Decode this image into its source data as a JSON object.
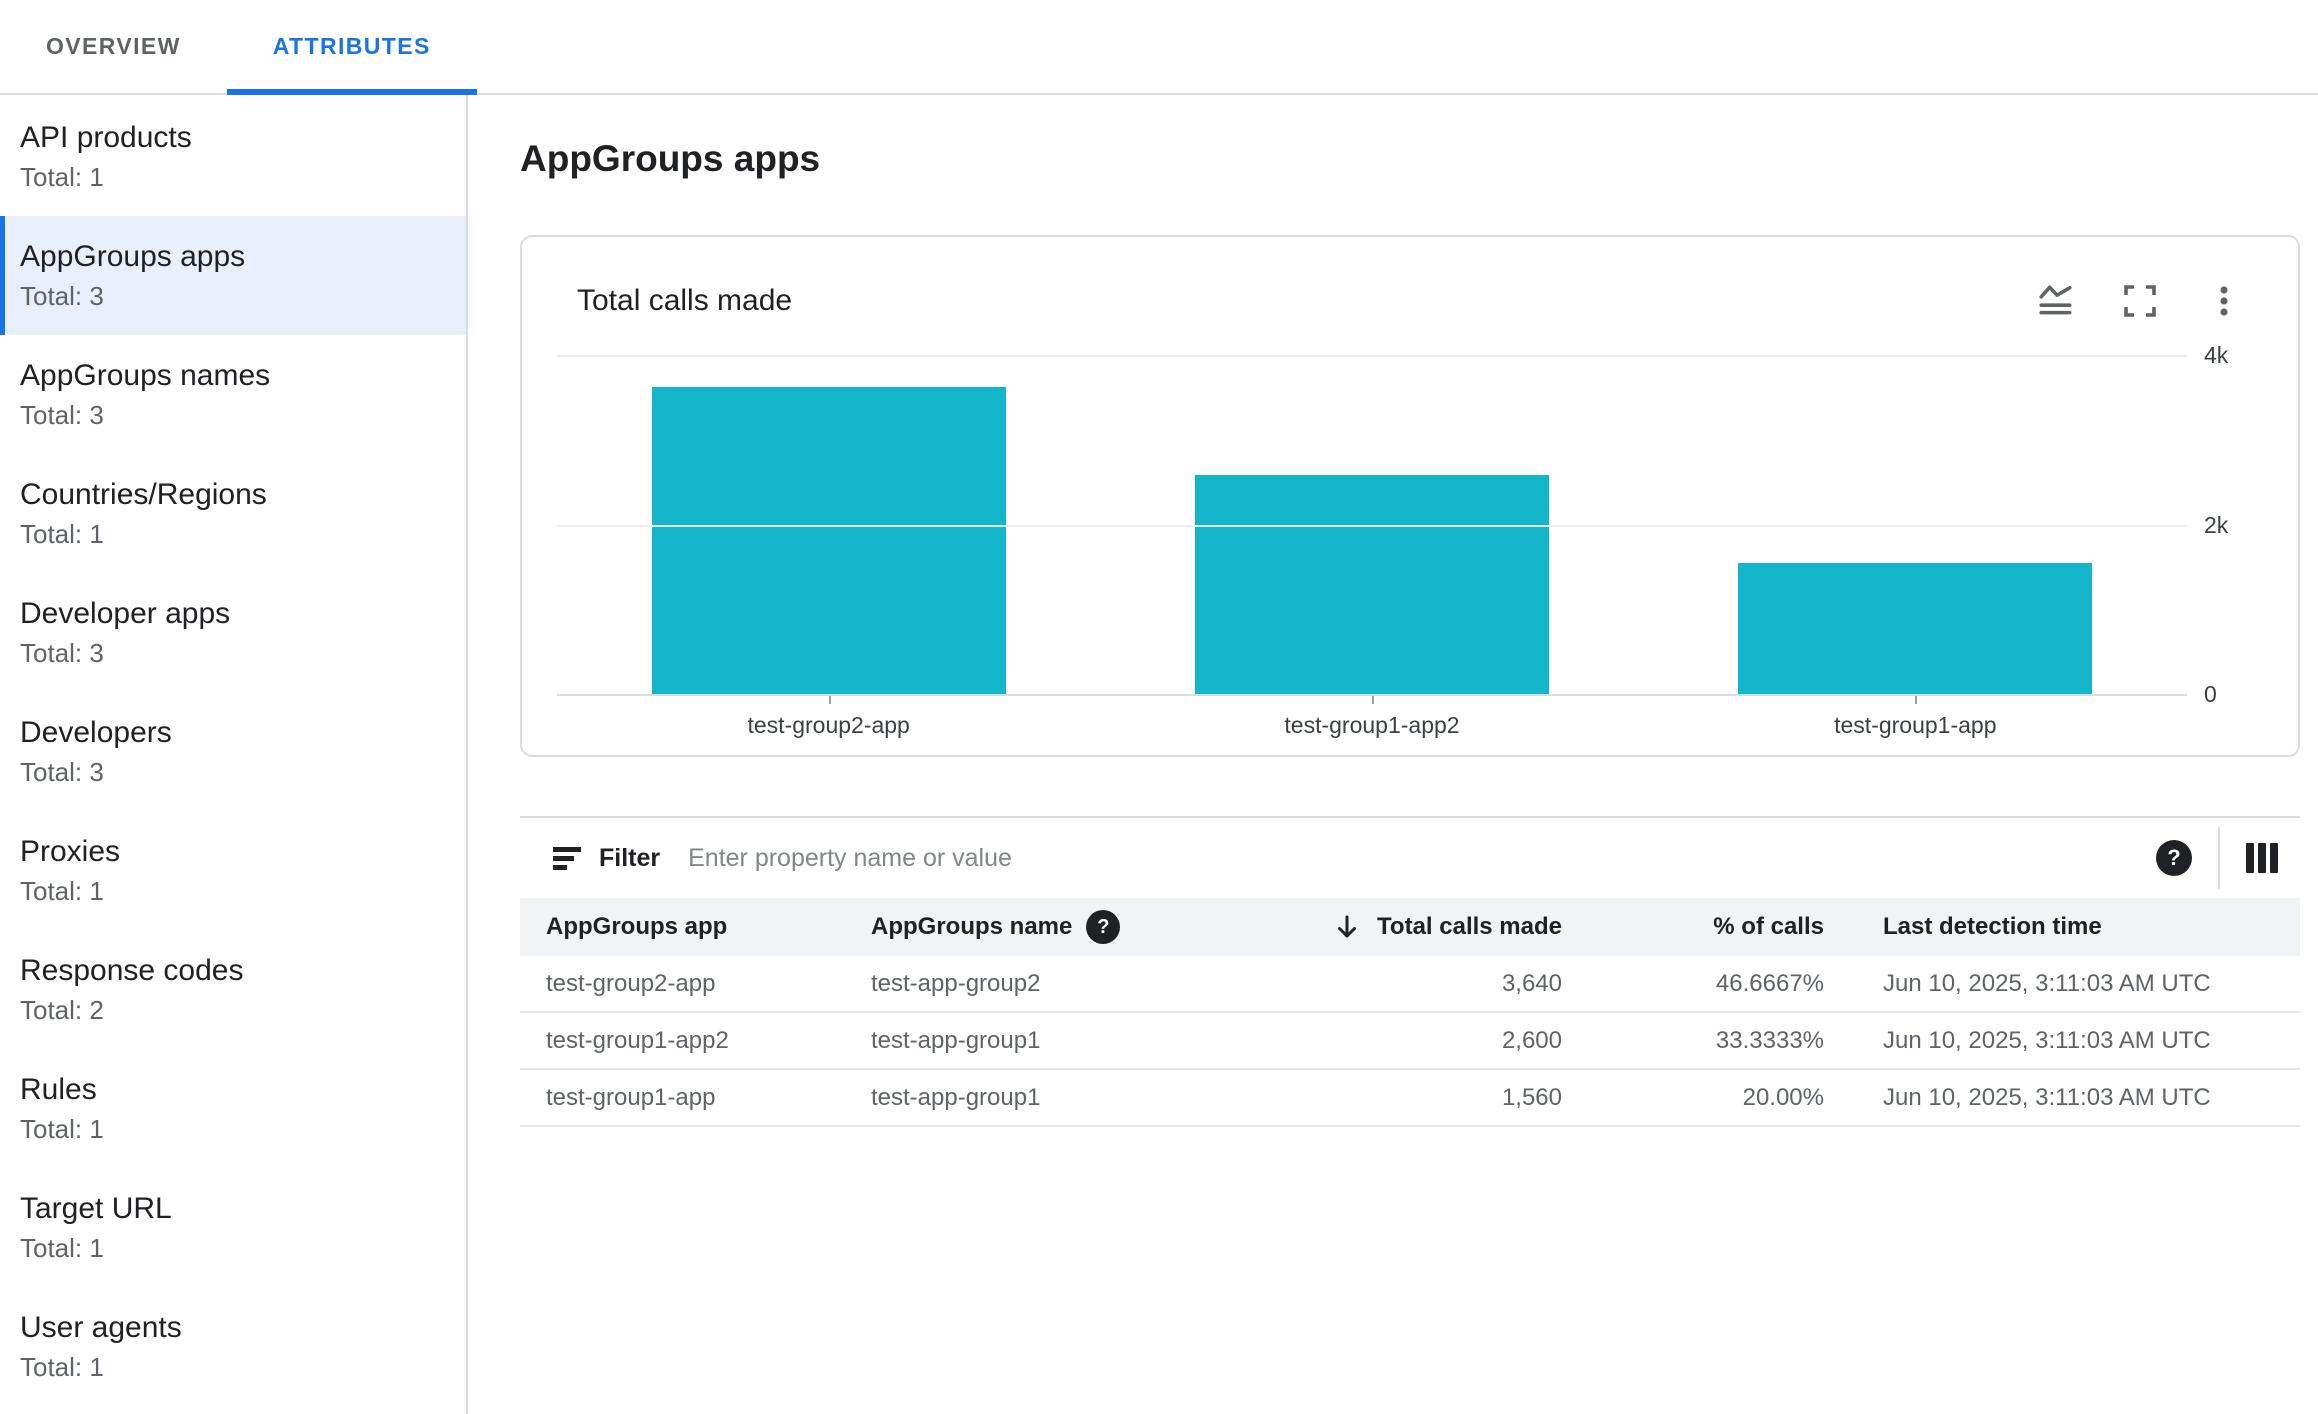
{
  "tabs": [
    {
      "label": "OVERVIEW",
      "active": false
    },
    {
      "label": "ATTRIBUTES",
      "active": true
    }
  ],
  "sidebar": {
    "items": [
      {
        "label": "API products",
        "total": "Total: 1",
        "selected": false
      },
      {
        "label": "AppGroups apps",
        "total": "Total: 3",
        "selected": true
      },
      {
        "label": "AppGroups names",
        "total": "Total: 3",
        "selected": false
      },
      {
        "label": "Countries/Regions",
        "total": "Total: 1",
        "selected": false
      },
      {
        "label": "Developer apps",
        "total": "Total: 3",
        "selected": false
      },
      {
        "label": "Developers",
        "total": "Total: 3",
        "selected": false
      },
      {
        "label": "Proxies",
        "total": "Total: 1",
        "selected": false
      },
      {
        "label": "Response codes",
        "total": "Total: 2",
        "selected": false
      },
      {
        "label": "Rules",
        "total": "Total: 1",
        "selected": false
      },
      {
        "label": "Target URL",
        "total": "Total: 1",
        "selected": false
      },
      {
        "label": "User agents",
        "total": "Total: 1",
        "selected": false
      }
    ]
  },
  "main": {
    "title": "AppGroups apps"
  },
  "chart_card": {
    "title": "Total calls made",
    "icons": [
      "area-chart-icon",
      "fullscreen-icon",
      "more-vert-icon"
    ]
  },
  "chart_data": {
    "type": "bar",
    "title": "Total calls made",
    "categories": [
      "test-group2-app",
      "test-group1-app2",
      "test-group1-app"
    ],
    "values": [
      3640,
      2600,
      1560
    ],
    "xlabel": "",
    "ylabel": "",
    "ylim": [
      0,
      4000
    ],
    "y_ticks": [
      {
        "label": "4k",
        "value": 4000
      },
      {
        "label": "2k",
        "value": 2000
      },
      {
        "label": "0",
        "value": 0
      }
    ],
    "grid": "horizontal",
    "legend": "none",
    "bar_color": "#12B5CA"
  },
  "filter": {
    "label": "Filter",
    "placeholder": "Enter property name or value"
  },
  "table": {
    "columns": [
      {
        "label": "AppGroups app"
      },
      {
        "label": "AppGroups name",
        "help": true
      },
      {
        "label": "Total calls made",
        "sorted": "desc"
      },
      {
        "label": "% of calls"
      },
      {
        "label": "Last detection time"
      }
    ],
    "rows": [
      [
        "test-group2-app",
        "test-app-group2",
        "3,640",
        "46.6667%",
        "Jun 10, 2025, 3:11:03 AM UTC"
      ],
      [
        "test-group1-app2",
        "test-app-group1",
        "2,600",
        "33.3333%",
        "Jun 10, 2025, 3:11:03 AM UTC"
      ],
      [
        "test-group1-app",
        "test-app-group1",
        "1,560",
        "20.00%",
        "Jun 10, 2025, 3:11:03 AM UTC"
      ]
    ]
  },
  "colors": {
    "accent": "#1A73E8",
    "bar": "#12B5CA",
    "selected_bg": "#E8F0FE",
    "text_primary": "#202124",
    "text_secondary": "#5F6368",
    "divider": "#DADCE0",
    "header_bg": "#F1F3F4"
  }
}
